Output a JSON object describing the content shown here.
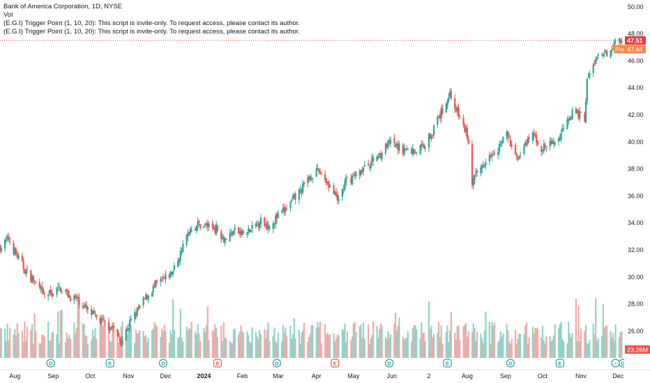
{
  "legend": {
    "symbol_line": "Bank of America Corporation, 1D, NYSE",
    "volume_label": "Vol",
    "script_line_1": "(E.G.I) Trigger Point  (1, 10, 20): This script is invite-only. To request access, please contact its author.",
    "script_line_2": "(E.G.I) Trigger Point  (1, 10, 20): This script is invite-only. To request access, please contact its author."
  },
  "colors": {
    "up": "#26a69a",
    "down": "#ef5350",
    "up_volume": "#8fd3c9",
    "down_volume": "#f7a9a7",
    "last_price_badge": "#f23645",
    "pre_market_badge": "#f7894a"
  },
  "chart_data": {
    "type": "candlestick",
    "y_axis": {
      "ticks": [
        "50.00",
        "48.00",
        "46.00",
        "44.00",
        "42.00",
        "40.00",
        "38.00",
        "36.00",
        "34.00",
        "32.00",
        "30.00",
        "28.00",
        "26.00"
      ],
      "ylim": [
        23.8,
        50.2
      ],
      "position": "right"
    },
    "x_axis": {
      "ticks": [
        "Aug",
        "Sep",
        "Oct",
        "Nov",
        "Dec",
        "2024",
        "Feb",
        "Mar",
        "Apr",
        "May",
        "Jun",
        "2",
        "Aug",
        "Sep",
        "Oct",
        "Nov",
        "Dec"
      ],
      "range": [
        "2023-07-20",
        "2024-12-06"
      ]
    },
    "price_anchors": [
      [
        "2023-07-20",
        32.2
      ],
      [
        "2023-07-27",
        32.8
      ],
      [
        "2023-08-03",
        31.5
      ],
      [
        "2023-08-10",
        30.4
      ],
      [
        "2023-08-17",
        29.6
      ],
      [
        "2023-08-24",
        28.6
      ],
      [
        "2023-08-31",
        28.8
      ],
      [
        "2023-09-07",
        29.2
      ],
      [
        "2023-09-14",
        28.6
      ],
      [
        "2023-09-21",
        28.3
      ],
      [
        "2023-09-28",
        27.6
      ],
      [
        "2023-10-05",
        27.0
      ],
      [
        "2023-10-12",
        26.6
      ],
      [
        "2023-10-19",
        26.3
      ],
      [
        "2023-10-26",
        25.2
      ],
      [
        "2023-11-02",
        26.6
      ],
      [
        "2023-11-09",
        27.6
      ],
      [
        "2023-11-16",
        28.6
      ],
      [
        "2023-11-23",
        29.4
      ],
      [
        "2023-11-30",
        29.8
      ],
      [
        "2023-12-07",
        30.4
      ],
      [
        "2023-12-14",
        32.0
      ],
      [
        "2023-12-21",
        33.6
      ],
      [
        "2023-12-28",
        33.9
      ],
      [
        "2024-01-04",
        33.8
      ],
      [
        "2024-01-11",
        33.6
      ],
      [
        "2024-01-18",
        32.8
      ],
      [
        "2024-01-25",
        33.4
      ],
      [
        "2024-02-01",
        33.2
      ],
      [
        "2024-02-08",
        33.4
      ],
      [
        "2024-02-15",
        34.2
      ],
      [
        "2024-02-22",
        33.8
      ],
      [
        "2024-02-29",
        34.4
      ],
      [
        "2024-03-07",
        35.0
      ],
      [
        "2024-03-14",
        35.8
      ],
      [
        "2024-03-21",
        36.6
      ],
      [
        "2024-03-28",
        37.6
      ],
      [
        "2024-04-04",
        37.8
      ],
      [
        "2024-04-11",
        36.9
      ],
      [
        "2024-04-18",
        35.6
      ],
      [
        "2024-04-25",
        37.1
      ],
      [
        "2024-05-02",
        37.5
      ],
      [
        "2024-05-09",
        38.0
      ],
      [
        "2024-05-16",
        38.6
      ],
      [
        "2024-05-23",
        39.2
      ],
      [
        "2024-05-30",
        39.9
      ],
      [
        "2024-06-06",
        39.6
      ],
      [
        "2024-06-13",
        39.4
      ],
      [
        "2024-06-20",
        39.3
      ],
      [
        "2024-06-27",
        39.8
      ],
      [
        "2024-07-04",
        40.8
      ],
      [
        "2024-07-11",
        42.2
      ],
      [
        "2024-07-18",
        43.6
      ],
      [
        "2024-07-25",
        42.0
      ],
      [
        "2024-08-01",
        40.5
      ],
      [
        "2024-08-05",
        37.0
      ],
      [
        "2024-08-12",
        38.1
      ],
      [
        "2024-08-19",
        39.2
      ],
      [
        "2024-08-26",
        39.6
      ],
      [
        "2024-09-02",
        40.6
      ],
      [
        "2024-09-09",
        38.8
      ],
      [
        "2024-09-16",
        39.5
      ],
      [
        "2024-09-23",
        40.6
      ],
      [
        "2024-09-30",
        39.5
      ],
      [
        "2024-10-07",
        39.8
      ],
      [
        "2024-10-14",
        40.2
      ],
      [
        "2024-10-21",
        41.9
      ],
      [
        "2024-10-28",
        42.2
      ],
      [
        "2024-11-04",
        41.8
      ],
      [
        "2024-11-06",
        44.5
      ],
      [
        "2024-11-13",
        46.1
      ],
      [
        "2024-11-20",
        46.4
      ],
      [
        "2024-11-27",
        47.2
      ],
      [
        "2024-12-03",
        47.6
      ]
    ],
    "annotations": {
      "last_price": "47.51",
      "pre_market_label": "Pre",
      "pre_market_price": "47.44",
      "volume": "23.26M"
    },
    "event_markers": [
      {
        "date": "2023-08-30",
        "label": "D"
      },
      {
        "date": "2023-10-17",
        "label": "E"
      },
      {
        "date": "2023-11-29",
        "label": "D"
      },
      {
        "date": "2024-01-12",
        "label": "E"
      },
      {
        "date": "2024-02-29",
        "label": "D"
      },
      {
        "date": "2024-04-16",
        "label": "E"
      },
      {
        "date": "2024-05-30",
        "label": "D"
      },
      {
        "date": "2024-07-16",
        "label": "E"
      },
      {
        "date": "2024-09-05",
        "label": "D"
      },
      {
        "date": "2024-10-15",
        "label": "E"
      },
      {
        "date": "2024-11-29",
        "label": "⚡"
      },
      {
        "date": "2024-12-05",
        "label": "D"
      }
    ]
  }
}
